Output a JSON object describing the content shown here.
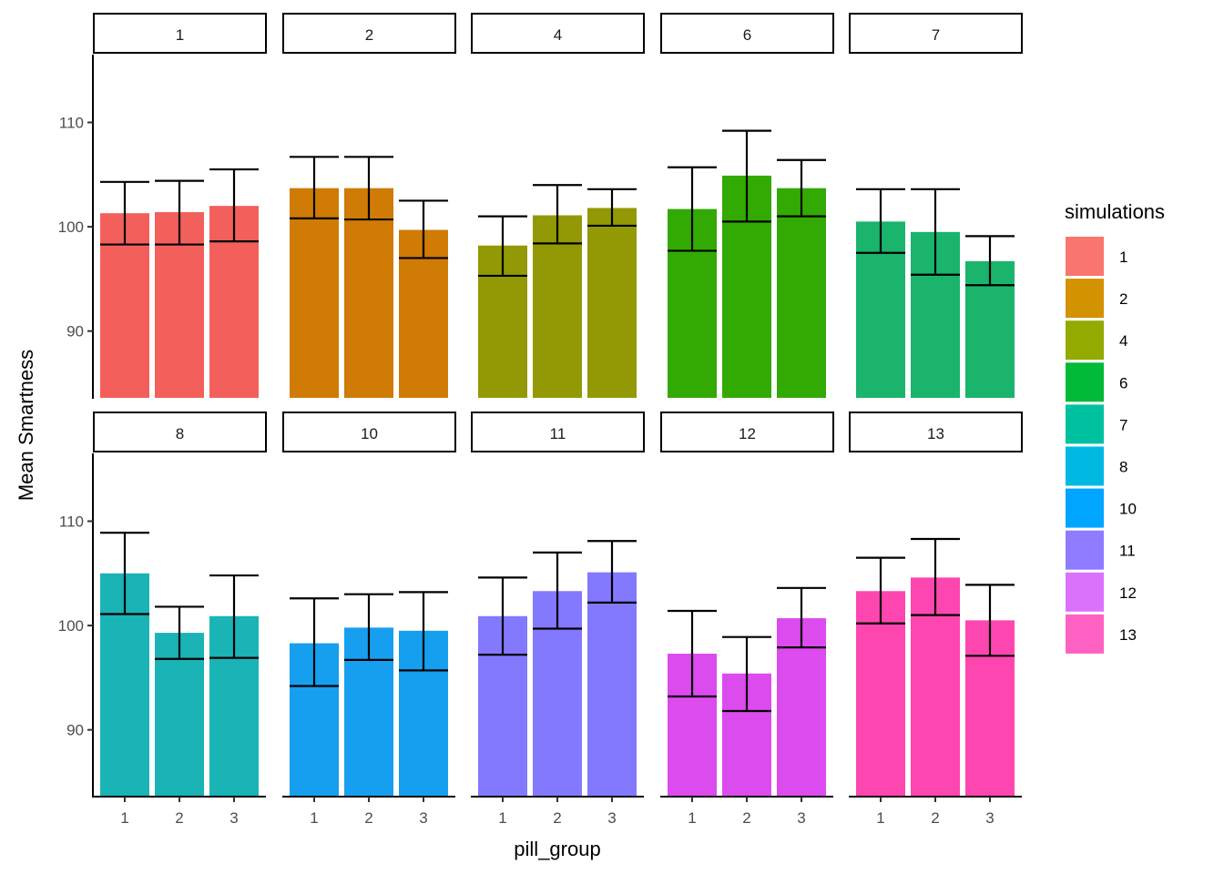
{
  "chart_data": {
    "type": "bar",
    "title": "",
    "xlabel": "pill_group",
    "ylabel": "Mean Smartness",
    "ylim": [
      83.6,
      116.5
    ],
    "yticks": [
      90,
      100,
      110
    ],
    "categories": [
      "1",
      "2",
      "3"
    ],
    "facet_layout": "2 rows x 5 columns",
    "legend": {
      "title": "simulations",
      "placement": "right",
      "entries": [
        {
          "label": "1",
          "color": "#F8766D"
        },
        {
          "label": "2",
          "color": "#D39200"
        },
        {
          "label": "4",
          "color": "#93AA00"
        },
        {
          "label": "6",
          "color": "#00BA38"
        },
        {
          "label": "7",
          "color": "#00C19F"
        },
        {
          "label": "8",
          "color": "#00B9E3"
        },
        {
          "label": "10",
          "color": "#00A5FF"
        },
        {
          "label": "11",
          "color": "#8F7BFF"
        },
        {
          "label": "12",
          "color": "#DB72FB"
        },
        {
          "label": "13",
          "color": "#FF61C3"
        }
      ]
    },
    "panels": [
      {
        "strip": "1",
        "color": "#F3605C",
        "values": [
          101.3,
          101.4,
          102.0
        ],
        "err_upper": [
          104.3,
          104.4,
          105.5
        ],
        "err_lower": [
          98.3,
          98.3,
          98.6
        ]
      },
      {
        "strip": "2",
        "color": "#CF7B06",
        "values": [
          103.7,
          103.7,
          99.7
        ],
        "err_upper": [
          106.7,
          106.7,
          102.5
        ],
        "err_lower": [
          100.8,
          100.7,
          97.0
        ]
      },
      {
        "strip": "4",
        "color": "#939904",
        "values": [
          98.2,
          101.1,
          101.8
        ],
        "err_upper": [
          101.0,
          104.0,
          103.6
        ],
        "err_lower": [
          95.3,
          98.4,
          100.1
        ]
      },
      {
        "strip": "6",
        "color": "#33AA04",
        "values": [
          101.7,
          104.9,
          103.7
        ],
        "err_upper": [
          105.7,
          109.2,
          106.4
        ],
        "err_lower": [
          97.7,
          100.5,
          101.0
        ]
      },
      {
        "strip": "7",
        "color": "#1AB46D",
        "values": [
          100.5,
          99.5,
          96.7
        ],
        "err_upper": [
          103.6,
          103.6,
          99.1
        ],
        "err_lower": [
          97.5,
          95.4,
          94.4
        ]
      },
      {
        "strip": "8",
        "color": "#1AB3B6",
        "values": [
          105.0,
          99.3,
          100.9
        ],
        "err_upper": [
          108.9,
          101.8,
          104.8
        ],
        "err_lower": [
          101.1,
          96.8,
          96.9
        ]
      },
      {
        "strip": "10",
        "color": "#169FEF",
        "values": [
          98.3,
          99.8,
          99.5
        ],
        "err_upper": [
          102.6,
          103.0,
          103.2
        ],
        "err_lower": [
          94.2,
          96.7,
          95.7
        ]
      },
      {
        "strip": "11",
        "color": "#8379FE",
        "values": [
          100.9,
          103.3,
          105.1
        ],
        "err_upper": [
          104.6,
          107.0,
          108.1
        ],
        "err_lower": [
          97.2,
          99.7,
          102.2
        ]
      },
      {
        "strip": "12",
        "color": "#DC4BEE",
        "values": [
          97.3,
          95.4,
          100.7
        ],
        "err_upper": [
          101.4,
          98.9,
          103.6
        ],
        "err_lower": [
          93.2,
          91.8,
          97.9
        ]
      },
      {
        "strip": "13",
        "color": "#FD46B0",
        "values": [
          103.3,
          104.6,
          100.5
        ],
        "err_upper": [
          106.5,
          108.3,
          103.9
        ],
        "err_lower": [
          100.2,
          101.0,
          97.1
        ]
      }
    ]
  }
}
